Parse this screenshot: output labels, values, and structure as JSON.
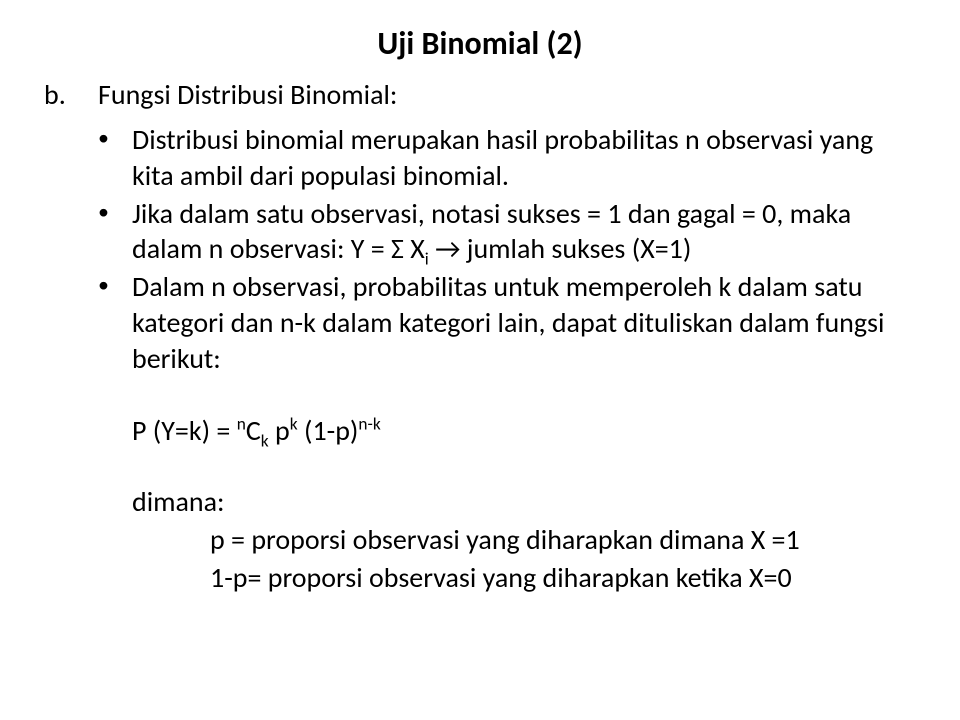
{
  "title": "Uji Binomial (2)",
  "section": {
    "marker": "b.",
    "heading": "Fungsi Distribusi Binomial:"
  },
  "bullets": {
    "b1": "Distribusi binomial  merupakan hasil probabilitas n observasi yang kita ambil dari  populasi binomial.",
    "b2_line1": "Jika dalam satu observasi, notasi  sukses = 1 dan gagal = 0, maka",
    "b2_line2_pre": "dalam n observasi:  Y = ",
    "b2_line2_sigma": "Σ",
    "b2_line2_x": " X",
    "b2_line2_sub": "i",
    "b2_line2_arrow": "  →  jumlah sukses (X=1)",
    "b3": "Dalam n observasi, probabilitas untuk memperoleh k  dalam satu kategori dan n-k dalam kategori lain, dapat dituliskan dalam fungsi berikut:"
  },
  "formula": {
    "pre": "P (Y=k) = ",
    "n": "n",
    "C": "C",
    "k1": "k",
    "sp1": " p",
    "k2": "k",
    "sp2": " (1-p)",
    "nk": "n-k"
  },
  "where": {
    "label": "dimana:",
    "line1": "p = proporsi observasi yang diharapkan dimana X =1",
    "line2": "1-p= proporsi observasi yang diharapkan ketika X=0"
  },
  "style": {
    "title_fontsize": 32,
    "body_fontsize": 28,
    "text_color": "#000000",
    "background_color": "#ffffff",
    "bullet_glyph": "•",
    "arrow_glyph": "→",
    "sigma_glyph": "Σ"
  }
}
